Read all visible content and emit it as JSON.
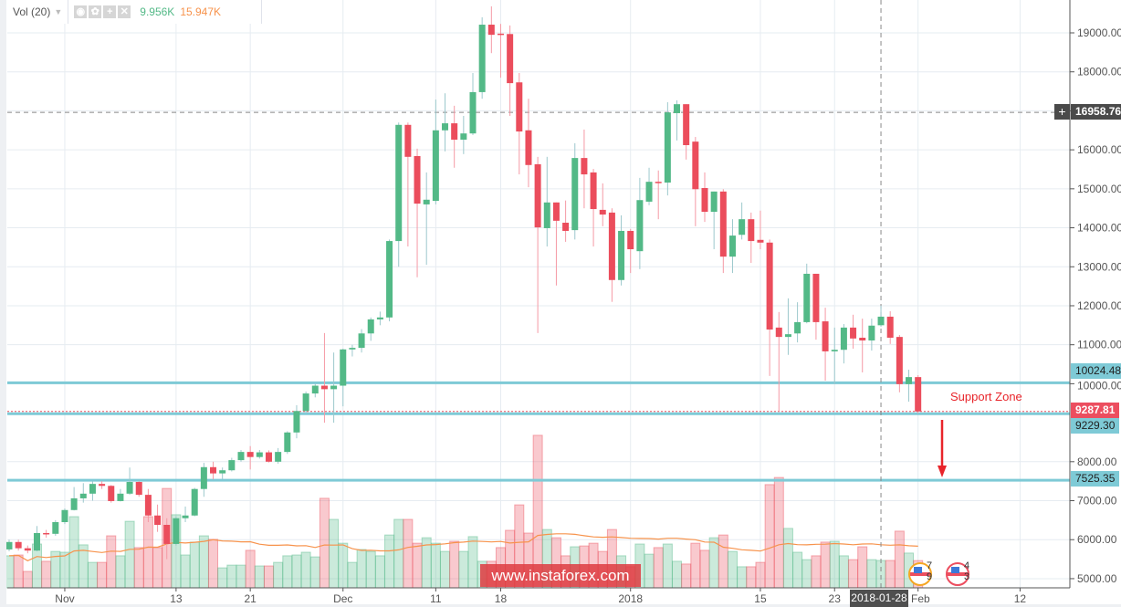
{
  "legend": {
    "name": "Vol (20)",
    "volume": "9.956K",
    "volume_ma": "15.947K",
    "icons": [
      "eye-icon",
      "gear-icon",
      "plus-icon",
      "close-icon"
    ]
  },
  "colors": {
    "up": "#53b987",
    "down": "#eb4d5c",
    "level": "#7ecad6",
    "ma": "#f7934c",
    "last_price": "#ec4e5f"
  },
  "annotations": {
    "support_label": "Support Zone",
    "watermark": "www.instafore x.com"
  },
  "price_tags": {
    "crosshair": "16958.76",
    "resistance": "10024.48",
    "last": "9287.81",
    "support": "9229.30",
    "target": "7525.35"
  },
  "crosshair_date": "2018-01-28",
  "events": [
    {
      "count": "7 9"
    },
    {
      "count": "4 3"
    }
  ],
  "chart_data": {
    "type": "candlestick",
    "ylim": [
      4750,
      19850
    ],
    "y_ticks": [
      "19000.00",
      "18000.00",
      "17000.00",
      "16000.00",
      "15000.00",
      "14000.00",
      "13000.00",
      "12000.00",
      "11000.00",
      "10000.00",
      "8000.00",
      "7000.00",
      "6000.00",
      "5000.00"
    ],
    "x_ticks": [
      {
        "label": "Nov",
        "date": "2017-11-01"
      },
      {
        "label": "13",
        "date": "2017-11-13"
      },
      {
        "label": "21",
        "date": "2017-11-21"
      },
      {
        "label": "Dec",
        "date": "2017-12-01"
      },
      {
        "label": "11",
        "date": "2017-12-11"
      },
      {
        "label": "18",
        "date": "2017-12-18"
      },
      {
        "label": "2018",
        "date": "2018-01-01"
      },
      {
        "label": "15",
        "date": "2018-01-15"
      },
      {
        "label": "23",
        "date": "2018-01-23"
      },
      {
        "label": "Feb",
        "date": "2018-02-01"
      },
      {
        "label": "12",
        "date": "2018-02-12"
      }
    ],
    "levels": [
      10024.48,
      9229.3,
      7525.35
    ],
    "crosshair_price": 16958.76,
    "last_price": 9287.81,
    "volume_ma_period": 20,
    "columns": [
      "date",
      "open",
      "high",
      "low",
      "close",
      "volume_k"
    ],
    "candles": [
      [
        "2017-10-26",
        5750,
        6000,
        5700,
        5940,
        11.7
      ],
      [
        "2017-10-27",
        5940,
        6000,
        5720,
        5780,
        12.0
      ],
      [
        "2017-10-28",
        5780,
        5850,
        5650,
        5720,
        6.0
      ],
      [
        "2017-10-29",
        5720,
        6350,
        5700,
        6170,
        16.0
      ],
      [
        "2017-10-30",
        6170,
        6250,
        6050,
        6150,
        9.7
      ],
      [
        "2017-10-31",
        6150,
        6500,
        6100,
        6450,
        13.3
      ],
      [
        "2017-11-01",
        6450,
        6800,
        6400,
        6760,
        13.0
      ],
      [
        "2017-11-02",
        6760,
        7350,
        6750,
        7060,
        26.0
      ],
      [
        "2017-11-03",
        7060,
        7450,
        6950,
        7180,
        15.7
      ],
      [
        "2017-11-04",
        7180,
        7500,
        7000,
        7430,
        9.3
      ],
      [
        "2017-11-05",
        7430,
        7500,
        7300,
        7380,
        9.3
      ],
      [
        "2017-11-06",
        7380,
        7400,
        6950,
        6990,
        19.0
      ],
      [
        "2017-11-07",
        6990,
        7300,
        6980,
        7180,
        11.7
      ],
      [
        "2017-11-08",
        7180,
        7850,
        7150,
        7480,
        24.3
      ],
      [
        "2017-11-09",
        7480,
        7500,
        7100,
        7150,
        14.7
      ],
      [
        "2017-11-10",
        7150,
        7300,
        6450,
        6620,
        26.0
      ],
      [
        "2017-11-11",
        6620,
        6900,
        6200,
        6380,
        14.7
      ],
      [
        "2017-11-12",
        6380,
        6550,
        5500,
        5890,
        36.3
      ],
      [
        "2017-11-13",
        5890,
        6600,
        5850,
        6550,
        26.7
      ],
      [
        "2017-11-14",
        6550,
        6850,
        6450,
        6620,
        12.0
      ],
      [
        "2017-11-15",
        6620,
        7330,
        6600,
        7300,
        16.7
      ],
      [
        "2017-11-16",
        7300,
        7970,
        7100,
        7860,
        19.0
      ],
      [
        "2017-11-17",
        7860,
        8000,
        7550,
        7700,
        17.7
      ],
      [
        "2017-11-18",
        7700,
        7850,
        7550,
        7780,
        7.3
      ],
      [
        "2017-11-19",
        7780,
        8100,
        7750,
        8040,
        8.3
      ],
      [
        "2017-11-20",
        8040,
        8300,
        8000,
        8250,
        8.3
      ],
      [
        "2017-11-21",
        8250,
        8400,
        7800,
        8120,
        13.7
      ],
      [
        "2017-11-22",
        8120,
        8300,
        8080,
        8240,
        8.0
      ],
      [
        "2017-11-23",
        8240,
        8290,
        7980,
        8000,
        8.0
      ],
      [
        "2017-11-24",
        8000,
        8350,
        7950,
        8250,
        9.3
      ],
      [
        "2017-11-25",
        8250,
        8780,
        8200,
        8750,
        11.7
      ],
      [
        "2017-11-26",
        8750,
        9450,
        8600,
        9300,
        12.0
      ],
      [
        "2017-11-27",
        9300,
        9800,
        9250,
        9750,
        13.0
      ],
      [
        "2017-11-28",
        9750,
        10000,
        9650,
        9950,
        11.3
      ],
      [
        "2017-11-29",
        9950,
        11300,
        9000,
        9860,
        32.7
      ],
      [
        "2017-11-30",
        9860,
        10800,
        9000,
        9950,
        25.0
      ],
      [
        "2017-12-01",
        9950,
        10900,
        9420,
        10880,
        16.3
      ],
      [
        "2017-12-02",
        10880,
        11000,
        10700,
        10920,
        9.3
      ],
      [
        "2017-12-03",
        10920,
        11400,
        10800,
        11290,
        14.0
      ],
      [
        "2017-12-04",
        11290,
        11700,
        11100,
        11650,
        13.3
      ],
      [
        "2017-12-05",
        11650,
        11850,
        11500,
        11700,
        11.7
      ],
      [
        "2017-12-06",
        11700,
        13700,
        11600,
        13660,
        19.3
      ],
      [
        "2017-12-07",
        13660,
        16700,
        13000,
        16640,
        25.0
      ],
      [
        "2017-12-08",
        16640,
        16700,
        13520,
        15820,
        25.0
      ],
      [
        "2017-12-09",
        15840,
        16030,
        12730,
        14620,
        16.3
      ],
      [
        "2017-12-10",
        14600,
        15420,
        13050,
        14720,
        18.3
      ],
      [
        "2017-12-11",
        14690,
        17290,
        14600,
        16500,
        16.3
      ],
      [
        "2017-12-12",
        16500,
        17450,
        15960,
        16680,
        13.3
      ],
      [
        "2017-12-13",
        16680,
        17130,
        15540,
        16260,
        17.0
      ],
      [
        "2017-12-14",
        16260,
        16870,
        15890,
        16420,
        13.3
      ],
      [
        "2017-12-15",
        16420,
        17970,
        16380,
        17480,
        18.7
      ],
      [
        "2017-12-16",
        17480,
        19400,
        17310,
        19210,
        9.7
      ],
      [
        "2017-12-17",
        19210,
        19680,
        18480,
        18950,
        9.7
      ],
      [
        "2017-12-18",
        18980,
        19230,
        17850,
        18950,
        14.7
      ],
      [
        "2017-12-19",
        18970,
        19190,
        16870,
        17710,
        21.0
      ],
      [
        "2017-12-20",
        17730,
        17970,
        15370,
        16470,
        30.3
      ],
      [
        "2017-12-21",
        16500,
        17310,
        15040,
        15610,
        20.0
      ],
      [
        "2017-12-22",
        15630,
        15820,
        11300,
        14010,
        55.7
      ],
      [
        "2017-12-23",
        13990,
        15820,
        13520,
        14650,
        21.3
      ],
      [
        "2017-12-24",
        14650,
        14650,
        12520,
        14180,
        18.3
      ],
      [
        "2017-12-25",
        14130,
        14700,
        13640,
        13920,
        11.7
      ],
      [
        "2017-12-26",
        13940,
        16170,
        13700,
        15790,
        15.0
      ],
      [
        "2017-12-27",
        15790,
        16520,
        14500,
        15370,
        15.3
      ],
      [
        "2017-12-28",
        15420,
        15510,
        13520,
        14480,
        16.3
      ],
      [
        "2017-12-29",
        14460,
        15140,
        14040,
        14340,
        13.3
      ],
      [
        "2017-12-30",
        14390,
        14500,
        12100,
        12660,
        21.3
      ],
      [
        "2017-12-31",
        12660,
        14320,
        12520,
        13920,
        11.7
      ],
      [
        "2018-01-01",
        13920,
        13970,
        12840,
        13450,
        7.7
      ],
      [
        "2018-01-02",
        13400,
        15280,
        12940,
        14710,
        16.0
      ],
      [
        "2018-01-03",
        14670,
        15540,
        14580,
        15180,
        12.3
      ],
      [
        "2018-01-04",
        15180,
        15470,
        14220,
        15150,
        14.7
      ],
      [
        "2018-01-05",
        15160,
        17220,
        14830,
        16960,
        16.0
      ],
      [
        "2018-01-06",
        16940,
        17270,
        16240,
        17170,
        9.7
      ],
      [
        "2018-01-07",
        17170,
        17170,
        15750,
        16120,
        8.7
      ],
      [
        "2018-01-08",
        16210,
        16330,
        14040,
        14990,
        16.3
      ],
      [
        "2018-01-09",
        15020,
        15420,
        14150,
        14410,
        13.7
      ],
      [
        "2018-01-10",
        14410,
        14930,
        13450,
        14930,
        18.3
      ],
      [
        "2018-01-11",
        14930,
        14990,
        12840,
        13260,
        19.3
      ],
      [
        "2018-01-12",
        13260,
        14220,
        12840,
        13800,
        13.3
      ],
      [
        "2018-01-13",
        13820,
        14650,
        13700,
        14220,
        7.7
      ],
      [
        "2018-01-14",
        14220,
        14390,
        13100,
        13660,
        7.7
      ],
      [
        "2018-01-15",
        13690,
        14440,
        13450,
        13620,
        9.3
      ],
      [
        "2018-01-16",
        13620,
        13700,
        10200,
        11390,
        37.7
      ],
      [
        "2018-01-17",
        11440,
        11840,
        9290,
        11200,
        40.3
      ],
      [
        "2018-01-18",
        11200,
        12190,
        10740,
        11270,
        21.7
      ],
      [
        "2018-01-19",
        11290,
        12090,
        11060,
        11580,
        13.0
      ],
      [
        "2018-01-20",
        11580,
        13080,
        11550,
        12820,
        10.3
      ],
      [
        "2018-01-21",
        12820,
        12820,
        11130,
        11580,
        11.7
      ],
      [
        "2018-01-22",
        11600,
        11950,
        10080,
        10830,
        16.7
      ],
      [
        "2018-01-23",
        10830,
        11440,
        9990,
        10870,
        17.0
      ],
      [
        "2018-01-24",
        10870,
        11530,
        10520,
        11440,
        11.7
      ],
      [
        "2018-01-25",
        11440,
        11770,
        10900,
        11160,
        10.3
      ],
      [
        "2018-01-26",
        11180,
        11670,
        10290,
        11110,
        15.0
      ],
      [
        "2018-01-27",
        11110,
        11670,
        10850,
        11490,
        10.3
      ],
      [
        "2018-01-28",
        11500,
        12000,
        11460,
        11720,
        10.0
      ],
      [
        "2018-01-29",
        11720,
        11860,
        11020,
        11180,
        10.0
      ],
      [
        "2018-01-30",
        11200,
        11250,
        9780,
        9990,
        20.7
      ],
      [
        "2018-01-31",
        9990,
        10360,
        9540,
        10170,
        12.7
      ],
      [
        "2018-02-01",
        10170,
        10220,
        9240,
        9287.81,
        9.956
      ]
    ]
  }
}
